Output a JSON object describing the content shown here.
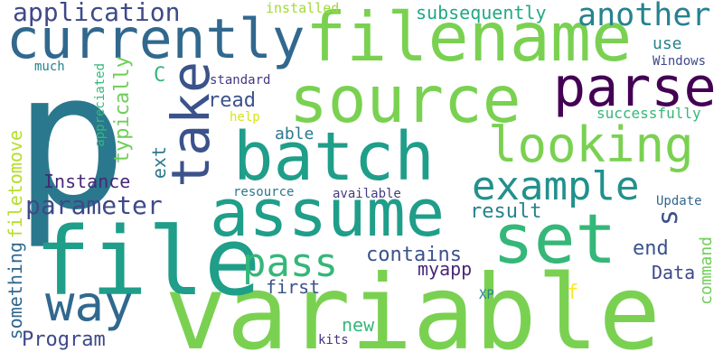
{
  "words": [
    {
      "text": "p",
      "color": "#2a788e",
      "vertical": false
    },
    {
      "text": "variable",
      "color": "#7ad151",
      "vertical": false
    },
    {
      "text": "file",
      "color": "#1f9e89",
      "vertical": false
    },
    {
      "text": "filename",
      "color": "#7ad151",
      "vertical": false
    },
    {
      "text": "assume",
      "color": "#1f9e89",
      "vertical": false
    },
    {
      "text": "batch",
      "color": "#1f9e89",
      "vertical": false
    },
    {
      "text": "source",
      "color": "#7ad151",
      "vertical": false
    },
    {
      "text": "set",
      "color": "#35b779",
      "vertical": false
    },
    {
      "text": "currently",
      "color": "#31688e",
      "vertical": false
    },
    {
      "text": "take",
      "color": "#3b528b",
      "vertical": true
    },
    {
      "text": "parse",
      "color": "#440154",
      "vertical": false
    },
    {
      "text": "looking",
      "color": "#7ad151",
      "vertical": false
    },
    {
      "text": "way",
      "color": "#31688e",
      "vertical": false
    },
    {
      "text": "example",
      "color": "#21918c",
      "vertical": false
    },
    {
      "text": "pass",
      "color": "#35b779",
      "vertical": false
    },
    {
      "text": "another",
      "color": "#26828e",
      "vertical": false
    },
    {
      "text": "parameter",
      "color": "#3e4989",
      "vertical": false
    },
    {
      "text": "application",
      "color": "#3e4989",
      "vertical": false
    },
    {
      "text": "s",
      "color": "#3b528b",
      "vertical": true
    },
    {
      "text": "subsequently",
      "color": "#22a884",
      "vertical": false
    },
    {
      "text": "Instance",
      "color": "#482878",
      "vertical": false
    },
    {
      "text": "contains",
      "color": "#3b528b",
      "vertical": false
    },
    {
      "text": "Program",
      "color": "#3e4989",
      "vertical": false
    },
    {
      "text": "typically",
      "color": "#6ece58",
      "vertical": true
    },
    {
      "text": "able",
      "color": "#2a788e",
      "vertical": false
    },
    {
      "text": "end",
      "color": "#3b528b",
      "vertical": false
    },
    {
      "text": "result",
      "color": "#26828e",
      "vertical": false
    },
    {
      "text": "Data",
      "color": "#3e4989",
      "vertical": false
    },
    {
      "text": "myapp",
      "color": "#482878",
      "vertical": false
    },
    {
      "text": "first",
      "color": "#3b528b",
      "vertical": false
    },
    {
      "text": "new",
      "color": "#35b779",
      "vertical": false
    },
    {
      "text": "something",
      "color": "#31688e",
      "vertical": true
    },
    {
      "text": "filetomove",
      "color": "#b5de2b",
      "vertical": true
    },
    {
      "text": "ext",
      "color": "#2a788e",
      "vertical": true
    },
    {
      "text": "read",
      "color": "#3b528b",
      "vertical": false
    },
    {
      "text": "C",
      "color": "#35b779",
      "vertical": false
    },
    {
      "text": "f",
      "color": "#fde725",
      "vertical": false
    },
    {
      "text": "command",
      "color": "#6ece58",
      "vertical": true
    },
    {
      "text": "use",
      "color": "#26828e",
      "vertical": false
    },
    {
      "text": "Windows",
      "color": "#3e4989",
      "vertical": false
    },
    {
      "text": "successfully",
      "color": "#35b779",
      "vertical": false
    },
    {
      "text": "installed",
      "color": "#a0da39",
      "vertical": false
    },
    {
      "text": "standard",
      "color": "#443983",
      "vertical": false
    },
    {
      "text": "much",
      "color": "#26828e",
      "vertical": false
    },
    {
      "text": "appreciated",
      "color": "#35b779",
      "vertical": true
    },
    {
      "text": "help",
      "color": "#d8e219",
      "vertical": false
    },
    {
      "text": "resource",
      "color": "#2a788e",
      "vertical": false
    },
    {
      "text": "available",
      "color": "#443983",
      "vertical": false
    },
    {
      "text": "Update",
      "color": "#31688e",
      "vertical": false
    },
    {
      "text": "XP",
      "color": "#26828e",
      "vertical": false
    },
    {
      "text": "kits",
      "color": "#46327e",
      "vertical": false
    }
  ]
}
